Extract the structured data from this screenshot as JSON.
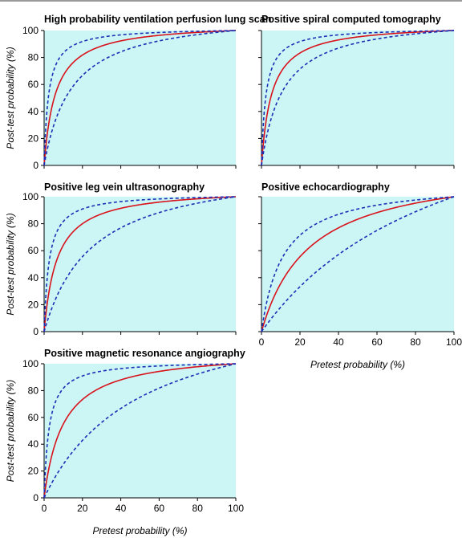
{
  "figure": {
    "xlabel": "Pretest probability (%)",
    "ylabel": "Post-test probability (%)"
  },
  "colors": {
    "panel_background": "#ccf6f6",
    "estimate_line": "#d9131c",
    "ci_line": "#1d2fb5"
  },
  "chart_data": [
    {
      "type": "line",
      "title": "High probability ventilation perfusion lung scan",
      "xlim": [
        0,
        100
      ],
      "ylim": [
        0,
        100
      ],
      "xticks": [],
      "yticks": [
        0,
        20,
        40,
        60,
        80,
        100
      ],
      "x_tick_labels_shown": false,
      "y_tick_labels_shown": true,
      "likelihood_ratios": {
        "point": 18,
        "lower": 8,
        "upper": 45
      },
      "x": [
        0,
        1,
        2,
        5,
        10,
        20,
        30,
        40,
        50,
        60,
        70,
        80,
        90,
        100
      ],
      "series": [
        {
          "role": "estimate",
          "style": "solid",
          "values": [
            0,
            15.4,
            26.9,
            48.6,
            66.7,
            81.8,
            88.5,
            92.3,
            94.7,
            96.4,
            97.7,
            98.6,
            99.4,
            100
          ]
        },
        {
          "role": "lower-ci",
          "style": "dashed",
          "values": [
            0,
            7.5,
            14.0,
            29.6,
            47.1,
            66.7,
            77.4,
            84.2,
            88.9,
            92.3,
            94.9,
            97.0,
            98.6,
            100
          ]
        },
        {
          "role": "upper-ci",
          "style": "dashed",
          "values": [
            0,
            31.3,
            47.9,
            70.3,
            83.3,
            91.8,
            95.1,
            96.8,
            97.8,
            98.5,
            99.1,
            99.4,
            99.8,
            100
          ]
        }
      ]
    },
    {
      "type": "line",
      "title": "Positive spiral computed tomography",
      "xlim": [
        0,
        100
      ],
      "ylim": [
        0,
        100
      ],
      "xticks": [],
      "yticks": [
        0,
        20,
        40,
        60,
        80,
        100
      ],
      "x_tick_labels_shown": false,
      "y_tick_labels_shown": false,
      "likelihood_ratios": {
        "point": 20,
        "lower": 10,
        "upper": 45
      },
      "x": [
        0,
        1,
        2,
        5,
        10,
        20,
        30,
        40,
        50,
        60,
        70,
        80,
        90,
        100
      ],
      "series": [
        {
          "role": "estimate",
          "style": "solid",
          "values": [
            0,
            16.8,
            29.0,
            51.3,
            69.0,
            83.3,
            89.6,
            93.0,
            95.2,
            96.8,
            97.9,
            98.8,
            99.4,
            100
          ]
        },
        {
          "role": "lower-ci",
          "style": "dashed",
          "values": [
            0,
            9.2,
            16.9,
            34.5,
            52.6,
            71.4,
            81.1,
            87.0,
            90.9,
            93.8,
            95.9,
            97.6,
            98.9,
            100
          ]
        },
        {
          "role": "upper-ci",
          "style": "dashed",
          "values": [
            0,
            31.3,
            47.9,
            70.3,
            83.3,
            91.8,
            95.1,
            96.8,
            97.8,
            98.5,
            99.1,
            99.4,
            99.8,
            100
          ]
        }
      ]
    },
    {
      "type": "line",
      "title": "Positive leg vein ultrasonography",
      "xlim": [
        0,
        100
      ],
      "ylim": [
        0,
        100
      ],
      "xticks": [],
      "yticks": [
        0,
        20,
        40,
        60,
        80,
        100
      ],
      "x_tick_labels_shown": false,
      "y_tick_labels_shown": true,
      "likelihood_ratios": {
        "point": 16,
        "lower": 5,
        "upper": 40
      },
      "x": [
        0,
        1,
        2,
        5,
        10,
        20,
        30,
        40,
        50,
        60,
        70,
        80,
        90,
        100
      ],
      "series": [
        {
          "role": "estimate",
          "style": "solid",
          "values": [
            0,
            13.9,
            24.6,
            45.7,
            64.0,
            80.0,
            87.3,
            91.4,
            94.1,
            96.0,
            97.4,
            98.5,
            99.3,
            100
          ]
        },
        {
          "role": "lower-ci",
          "style": "dashed",
          "values": [
            0,
            4.8,
            9.3,
            20.8,
            35.7,
            55.6,
            68.2,
            76.9,
            83.3,
            88.2,
            92.1,
            95.2,
            97.8,
            100
          ]
        },
        {
          "role": "upper-ci",
          "style": "dashed",
          "values": [
            0,
            28.8,
            44.9,
            67.8,
            81.6,
            90.9,
            94.5,
            96.4,
            97.6,
            98.4,
            98.9,
            99.4,
            99.7,
            100
          ]
        }
      ]
    },
    {
      "type": "line",
      "title": "Positive echocardiography",
      "xlim": [
        0,
        100
      ],
      "ylim": [
        0,
        100
      ],
      "xticks": [
        0,
        20,
        40,
        60,
        80,
        100
      ],
      "yticks": [
        0,
        20,
        40,
        60,
        80,
        100
      ],
      "x_tick_labels_shown": true,
      "y_tick_labels_shown": false,
      "xlabel": "Pretest probability (%)",
      "likelihood_ratios": {
        "point": 5,
        "lower": 2,
        "upper": 10
      },
      "x": [
        0,
        1,
        2,
        5,
        10,
        20,
        30,
        40,
        50,
        60,
        70,
        80,
        90,
        100
      ],
      "series": [
        {
          "role": "estimate",
          "style": "solid",
          "values": [
            0,
            4.8,
            9.3,
            20.8,
            35.7,
            55.6,
            68.2,
            76.9,
            83.3,
            88.2,
            92.1,
            95.2,
            97.8,
            100
          ]
        },
        {
          "role": "lower-ci",
          "style": "dashed",
          "values": [
            0,
            2.0,
            3.9,
            9.5,
            18.2,
            33.3,
            46.2,
            57.1,
            66.7,
            75.0,
            82.4,
            88.9,
            94.7,
            100
          ]
        },
        {
          "role": "upper-ci",
          "style": "dashed",
          "values": [
            0,
            9.2,
            16.9,
            34.5,
            52.6,
            71.4,
            81.1,
            87.0,
            90.9,
            93.8,
            95.9,
            97.6,
            98.9,
            100
          ]
        }
      ]
    },
    {
      "type": "line",
      "title": "Positive magnetic resonance angiography",
      "xlim": [
        0,
        100
      ],
      "ylim": [
        0,
        100
      ],
      "xticks": [
        0,
        20,
        40,
        60,
        80,
        100
      ],
      "yticks": [
        0,
        20,
        40,
        60,
        80,
        100
      ],
      "x_tick_labels_shown": true,
      "y_tick_labels_shown": true,
      "xlabel": "Pretest probability (%)",
      "likelihood_ratios": {
        "point": 11,
        "lower": 3,
        "upper": 40
      },
      "x": [
        0,
        1,
        2,
        5,
        10,
        20,
        30,
        40,
        50,
        60,
        70,
        80,
        90,
        100
      ],
      "series": [
        {
          "role": "estimate",
          "style": "solid",
          "values": [
            0,
            10.0,
            18.3,
            36.7,
            55.0,
            73.3,
            82.5,
            88.0,
            91.7,
            94.3,
            96.3,
            97.8,
            99.0,
            100
          ]
        },
        {
          "role": "lower-ci",
          "style": "dashed",
          "values": [
            0,
            2.9,
            5.8,
            13.6,
            25.0,
            42.9,
            56.3,
            66.7,
            75.0,
            81.8,
            87.5,
            92.3,
            96.4,
            100
          ]
        },
        {
          "role": "upper-ci",
          "style": "dashed",
          "values": [
            0,
            28.8,
            44.9,
            67.8,
            81.6,
            90.9,
            94.5,
            96.4,
            97.6,
            98.4,
            98.9,
            99.4,
            99.7,
            100
          ]
        }
      ]
    }
  ]
}
